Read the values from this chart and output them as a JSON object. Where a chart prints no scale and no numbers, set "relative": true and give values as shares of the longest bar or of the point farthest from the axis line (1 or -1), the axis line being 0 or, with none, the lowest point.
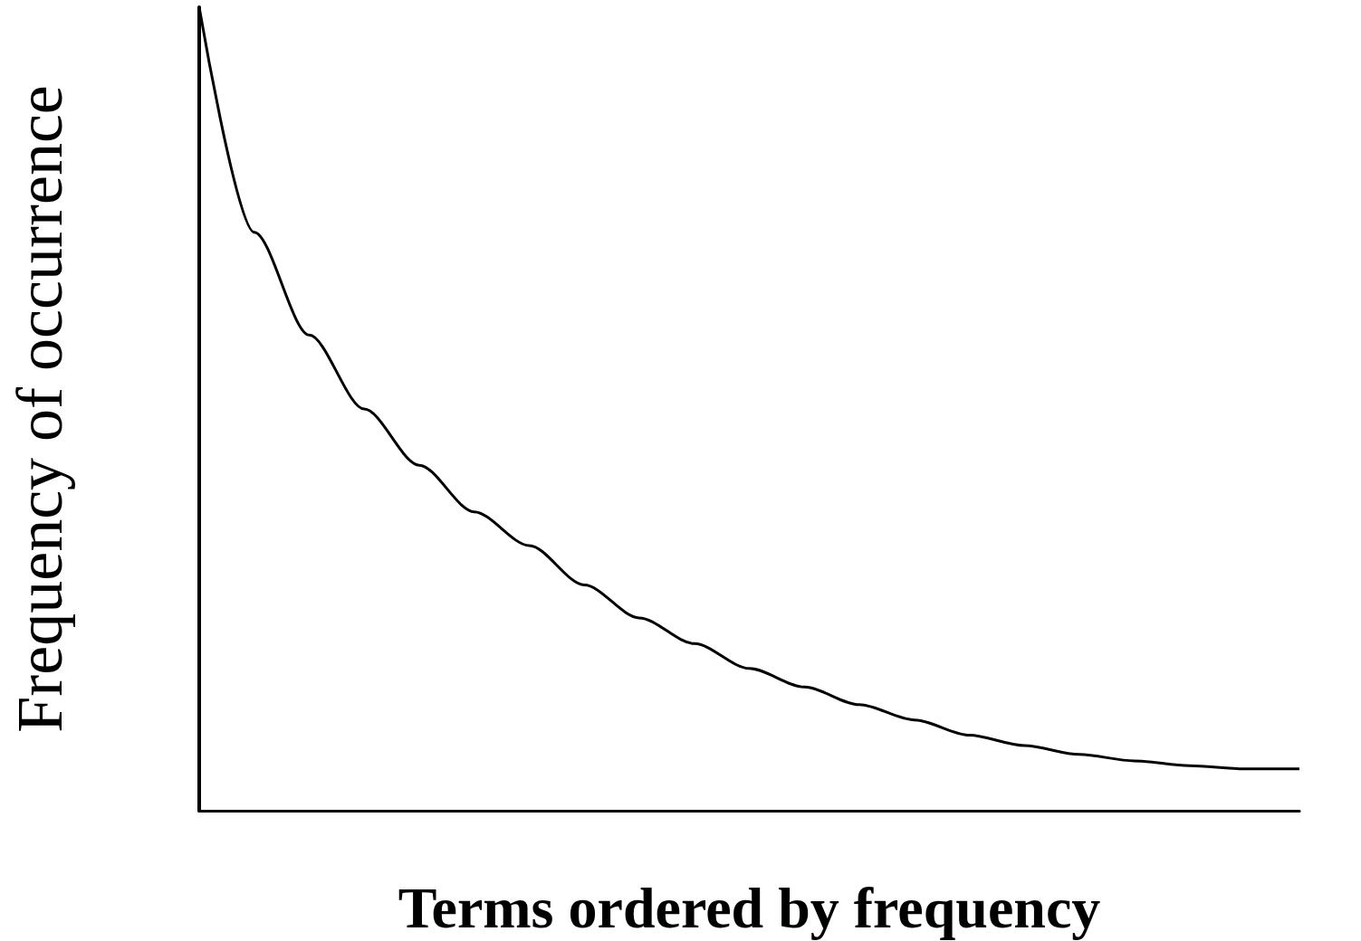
{
  "chart_data": {
    "type": "line",
    "xlabel": "Terms ordered by frequency",
    "ylabel": "Frequency of occurrence",
    "relative": true,
    "categories": [
      null,
      null,
      null,
      null,
      null,
      null,
      null,
      null,
      null,
      null,
      null,
      null,
      null,
      null,
      null,
      null,
      null,
      null,
      null,
      null,
      null
    ],
    "series": [
      {
        "color": "#000000",
        "values": [
          1,
          0.72,
          0.592,
          0.5,
          0.43,
          0.372,
          0.33,
          0.281,
          0.24,
          0.208,
          0.177,
          0.154,
          0.132,
          0.113,
          0.094,
          0.081,
          0.07,
          0.062,
          0.056,
          0.052,
          0.052
        ]
      }
    ],
    "marker": "none",
    "grid": false
  }
}
